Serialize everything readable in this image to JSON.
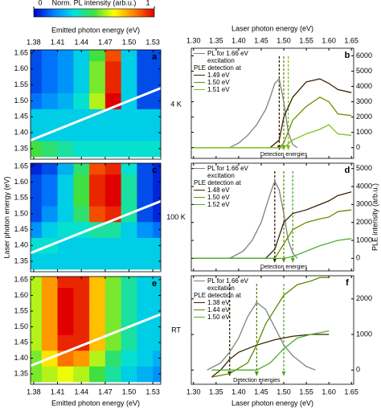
{
  "chart_data": [
    {
      "type": "heatmap",
      "panel_label": "a",
      "temperature": "4 K",
      "xlabel": "Emitted photon energy (eV)",
      "x_tick_labels": "top",
      "colorbar": {
        "label": "Norm. PL intensity (arb.u.)",
        "ticks": [
          0,
          1
        ]
      },
      "colormap": [
        "#0000c8",
        "#0080ff",
        "#00e0e0",
        "#40e040",
        "#ffff00",
        "#ff8000",
        "#e00000"
      ],
      "laser_line": true,
      "xlim": [
        1.376,
        1.54
      ],
      "ylim": [
        1.317,
        1.66
      ],
      "xticks": [
        1.38,
        1.41,
        1.44,
        1.47,
        {
          "value": 1.5,
          "label": "1.50"
        },
        1.53
      ],
      "yticks": [
        1.35,
        {
          "value": 1.4,
          "label": "1.40"
        },
        1.45,
        {
          "value": 1.5,
          "label": "1.50"
        },
        1.55,
        {
          "value": 1.6,
          "label": "1.60"
        },
        1.65
      ],
      "x": [
        1.38,
        1.4,
        1.42,
        1.44,
        1.46,
        1.48,
        1.5,
        1.52,
        1.54
      ],
      "y": [
        1.35,
        1.4,
        1.45,
        1.5,
        1.55,
        1.6,
        1.65
      ],
      "z": [
        [
          0.5,
          0.45,
          0.4,
          0.35,
          0.35,
          0.35,
          0.35,
          0.35,
          0.35
        ],
        [
          0.3,
          0.3,
          0.3,
          0.3,
          0.3,
          0.3,
          0.3,
          0.3,
          0.3
        ],
        [
          0.3,
          0.3,
          0.3,
          0.3,
          0.3,
          0.3,
          0.3,
          0.3,
          0.3
        ],
        [
          0.15,
          0.2,
          0.25,
          0.35,
          0.6,
          1.0,
          0.3,
          0.1,
          0.1
        ],
        [
          0.1,
          0.15,
          0.2,
          0.3,
          0.55,
          0.95,
          0.3,
          0.1,
          0.1
        ],
        [
          0.1,
          0.15,
          0.2,
          0.3,
          0.55,
          0.95,
          0.3,
          0.1,
          0.1
        ],
        [
          0.1,
          0.15,
          0.2,
          0.3,
          0.5,
          0.9,
          0.3,
          0.1,
          0.1
        ]
      ]
    },
    {
      "type": "heatmap",
      "panel_label": "c",
      "temperature": "100 K",
      "ylabel": "Laser photon energy (eV)",
      "colormap": [
        "#0000c8",
        "#0080ff",
        "#00e0e0",
        "#40e040",
        "#ffff00",
        "#ff8000",
        "#e00000"
      ],
      "laser_line": true,
      "xlim": [
        1.376,
        1.54
      ],
      "ylim": [
        1.317,
        1.66
      ],
      "xticks": [
        1.38,
        1.41,
        1.44,
        1.47,
        {
          "value": 1.5,
          "label": "1.50"
        },
        1.53
      ],
      "yticks": [
        1.35,
        {
          "value": 1.4,
          "label": "1.40"
        },
        1.45,
        {
          "value": 1.5,
          "label": "1.50"
        },
        1.55,
        {
          "value": 1.6,
          "label": "1.60"
        },
        1.65
      ],
      "x": [
        1.38,
        1.4,
        1.42,
        1.44,
        1.46,
        1.48,
        1.5,
        1.52,
        1.54
      ],
      "y": [
        1.35,
        1.4,
        1.45,
        1.5,
        1.55,
        1.6,
        1.65
      ],
      "z": [
        [
          0.3,
          0.3,
          0.3,
          0.3,
          0.3,
          0.3,
          0.3,
          0.3,
          0.3
        ],
        [
          0.35,
          0.35,
          0.3,
          0.3,
          0.3,
          0.3,
          0.3,
          0.3,
          0.3
        ],
        [
          0.2,
          0.3,
          0.35,
          0.35,
          0.4,
          0.4,
          0.3,
          0.2,
          0.15
        ],
        [
          0.1,
          0.2,
          0.3,
          0.45,
          0.9,
          0.95,
          0.4,
          0.1,
          0.05
        ],
        [
          0.1,
          0.15,
          0.3,
          0.5,
          0.95,
          1.0,
          0.4,
          0.1,
          0.05
        ],
        [
          0.1,
          0.15,
          0.3,
          0.5,
          0.95,
          1.0,
          0.4,
          0.1,
          0.05
        ],
        [
          0.05,
          0.1,
          0.25,
          0.45,
          0.9,
          0.95,
          0.35,
          0.1,
          0.05
        ]
      ]
    },
    {
      "type": "heatmap",
      "panel_label": "e",
      "temperature": "RT",
      "xlabel": "Emitted photon energy (eV)",
      "x_tick_labels": "bottom",
      "colormap": [
        "#0000c8",
        "#0080ff",
        "#00e0e0",
        "#40e040",
        "#ffff00",
        "#ff8000",
        "#e00000"
      ],
      "laser_line": true,
      "xlim": [
        1.376,
        1.54
      ],
      "ylim": [
        1.317,
        1.66
      ],
      "xticks": [
        1.38,
        1.41,
        1.44,
        1.47,
        {
          "value": 1.5,
          "label": "1.50"
        },
        1.53
      ],
      "yticks": [
        1.35,
        {
          "value": 1.4,
          "label": "1.40"
        },
        1.45,
        {
          "value": 1.5,
          "label": "1.50"
        },
        1.55,
        {
          "value": 1.6,
          "label": "1.60"
        },
        1.65
      ],
      "x": [
        1.38,
        1.4,
        1.42,
        1.44,
        1.46,
        1.48,
        1.5,
        1.52,
        1.54
      ],
      "y": [
        1.35,
        1.4,
        1.45,
        1.5,
        1.55,
        1.6,
        1.65
      ],
      "z": [
        [
          0.55,
          0.6,
          0.65,
          0.6,
          0.5,
          0.4,
          0.3,
          0.25,
          0.2
        ],
        [
          0.55,
          0.7,
          0.85,
          0.8,
          0.6,
          0.45,
          0.35,
          0.3,
          0.25
        ],
        [
          0.6,
          0.8,
          0.95,
          0.95,
          0.75,
          0.55,
          0.4,
          0.3,
          0.3
        ],
        [
          0.6,
          0.8,
          1.0,
          0.95,
          0.75,
          0.55,
          0.4,
          0.3,
          0.3
        ],
        [
          0.6,
          0.8,
          1.0,
          0.95,
          0.75,
          0.55,
          0.4,
          0.3,
          0.3
        ],
        [
          0.6,
          0.8,
          1.0,
          0.95,
          0.75,
          0.55,
          0.4,
          0.3,
          0.3
        ],
        [
          0.6,
          0.8,
          0.95,
          0.95,
          0.75,
          0.55,
          0.4,
          0.3,
          0.3
        ]
      ]
    },
    {
      "type": "line",
      "panel_label": "b",
      "xlabel": "Laser photon energy (eV)",
      "x_tick_labels": "top",
      "legend_title": "PLE detection at",
      "annotation": "Detection energies",
      "detection_energies": [
        1.49,
        1.5,
        1.51
      ],
      "xlim": [
        1.295,
        1.655
      ],
      "ylim": [
        -700,
        6500
      ],
      "xticks": [
        {
          "value": 1.3,
          "label": "1.30"
        },
        1.35,
        {
          "value": 1.4,
          "label": "1.40"
        },
        1.45,
        {
          "value": 1.5,
          "label": "1.50"
        },
        1.55,
        {
          "value": 1.6,
          "label": "1.60"
        },
        1.65
      ],
      "yticks": [
        0,
        1000,
        2000,
        3000,
        4000,
        5000,
        6000
      ],
      "series": [
        {
          "name": "PL for 1.66 eV excitation",
          "color": "#808080",
          "x": [
            1.38,
            1.4,
            1.42,
            1.44,
            1.46,
            1.47,
            1.48,
            1.49,
            1.5,
            1.51,
            1.52,
            1.53
          ],
          "values": [
            0,
            300,
            800,
            1500,
            2500,
            3300,
            4200,
            4500,
            3000,
            1000,
            200,
            0
          ]
        },
        {
          "name": "1.49 eV",
          "color": "#3b2000",
          "x": [
            1.3,
            1.47,
            1.49,
            1.5,
            1.52,
            1.55,
            1.58,
            1.6,
            1.62,
            1.65
          ],
          "values": [
            0,
            0,
            500,
            2000,
            3300,
            4300,
            4500,
            4200,
            3800,
            3600
          ]
        },
        {
          "name": "1.50 eV",
          "color": "#6b8e00",
          "x": [
            1.3,
            1.49,
            1.5,
            1.52,
            1.55,
            1.58,
            1.6,
            1.62,
            1.65
          ],
          "values": [
            0,
            0,
            300,
            1800,
            2700,
            3300,
            3000,
            2200,
            2100
          ]
        },
        {
          "name": "1.51 eV",
          "color": "#7dc220",
          "x": [
            1.3,
            1.5,
            1.52,
            1.55,
            1.58,
            1.6,
            1.62,
            1.65
          ],
          "values": [
            0,
            0,
            500,
            900,
            1200,
            1500,
            900,
            800
          ]
        }
      ]
    },
    {
      "type": "line",
      "panel_label": "d",
      "ylabel": "PLE intensity (arb.u.)",
      "legend_title": "PLE detection at",
      "annotation": "Detection energies",
      "detection_energies": [
        1.48,
        1.5,
        1.52
      ],
      "xlim": [
        1.295,
        1.655
      ],
      "ylim": [
        -700,
        5300
      ],
      "xticks": [
        {
          "value": 1.3,
          "label": "1.30"
        },
        1.35,
        {
          "value": 1.4,
          "label": "1.40"
        },
        1.45,
        {
          "value": 1.5,
          "label": "1.50"
        },
        1.55,
        {
          "value": 1.6,
          "label": "1.60"
        },
        1.65
      ],
      "yticks": [
        0,
        1000,
        2000,
        3000,
        4000,
        5000
      ],
      "series": [
        {
          "name": "PL for 1.66 eV excitation",
          "color": "#808080",
          "x": [
            1.38,
            1.41,
            1.43,
            1.45,
            1.47,
            1.48,
            1.49,
            1.5,
            1.51,
            1.52,
            1.53
          ],
          "values": [
            0,
            400,
            1000,
            2000,
            3600,
            4300,
            3800,
            2500,
            1000,
            300,
            0
          ]
        },
        {
          "name": "1.48 eV",
          "color": "#3b2000",
          "x": [
            1.3,
            1.46,
            1.48,
            1.5,
            1.52,
            1.55,
            1.58,
            1.6,
            1.62,
            1.65
          ],
          "values": [
            0,
            0,
            500,
            2000,
            2500,
            2700,
            3000,
            3200,
            3500,
            3700
          ]
        },
        {
          "name": "1.50 eV",
          "color": "#6b8e00",
          "x": [
            1.3,
            1.48,
            1.5,
            1.52,
            1.55,
            1.58,
            1.6,
            1.62,
            1.65
          ],
          "values": [
            0,
            0,
            800,
            1600,
            2000,
            2200,
            2300,
            2600,
            2700
          ]
        },
        {
          "name": "1.52 eV",
          "color": "#4caf2a",
          "x": [
            1.3,
            1.5,
            1.52,
            1.55,
            1.58,
            1.62,
            1.65
          ],
          "values": [
            0,
            0,
            100,
            400,
            700,
            1000,
            1100
          ]
        }
      ]
    },
    {
      "type": "line",
      "panel_label": "f",
      "xlabel": "Laser photon energy (eV)",
      "x_tick_labels": "bottom",
      "legend_title": "PLE detection at",
      "annotation": "Detection energies",
      "detection_energies": [
        1.38,
        1.44,
        1.5
      ],
      "xlim": [
        1.295,
        1.655
      ],
      "ylim": [
        -400,
        2650
      ],
      "xticks": [
        {
          "value": 1.3,
          "label": "1.30"
        },
        1.35,
        {
          "value": 1.4,
          "label": "1.40"
        },
        1.45,
        {
          "value": 1.5,
          "label": "1.50"
        },
        1.55,
        {
          "value": 1.6,
          "label": "1.60"
        },
        1.65
      ],
      "yticks": [
        0,
        1000,
        2000
      ],
      "series": [
        {
          "name": "PL for 1.66 eV excitation",
          "color": "#808080",
          "x": [
            1.33,
            1.36,
            1.38,
            1.4,
            1.42,
            1.44,
            1.46,
            1.48,
            1.5,
            1.52,
            1.55,
            1.57
          ],
          "values": [
            0,
            200,
            500,
            900,
            1500,
            1900,
            1700,
            1200,
            700,
            400,
            100,
            0
          ]
        },
        {
          "name": "1.38 eV",
          "color": "#3b2000",
          "x": [
            1.34,
            1.36,
            1.38,
            1.4,
            1.44,
            1.48,
            1.52,
            1.56,
            1.6
          ],
          "values": [
            -200,
            0,
            300,
            500,
            700,
            850,
            950,
            1000,
            1000
          ]
        },
        {
          "name": "1.44 eV",
          "color": "#5a8a00",
          "x": [
            1.34,
            1.38,
            1.42,
            1.44,
            1.46,
            1.48,
            1.5,
            1.53,
            1.56,
            1.58,
            1.6
          ],
          "values": [
            -200,
            -100,
            200,
            700,
            1300,
            1700,
            2100,
            2400,
            2500,
            2600,
            2600
          ]
        },
        {
          "name": "1.50 eV",
          "color": "#4caf2a",
          "x": [
            1.34,
            1.44,
            1.47,
            1.5,
            1.53,
            1.56,
            1.6
          ],
          "values": [
            0,
            0,
            200,
            600,
            900,
            1000,
            1100
          ]
        }
      ]
    }
  ]
}
